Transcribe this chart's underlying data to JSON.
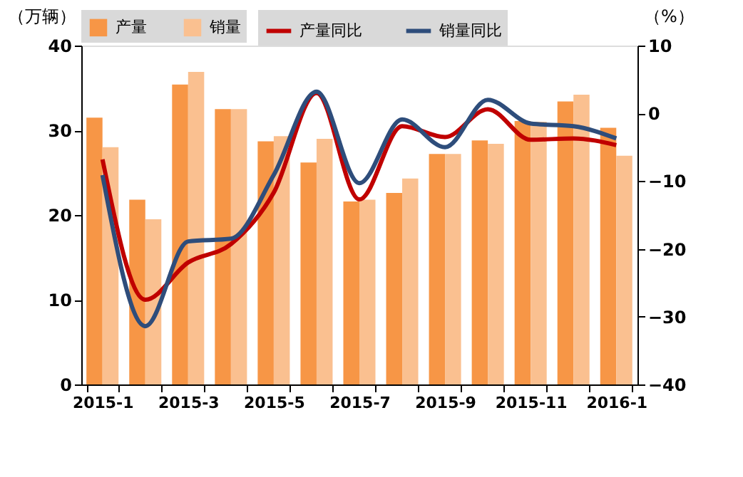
{
  "chart_data": {
    "type": "bar",
    "categories": [
      "2015-1",
      null,
      "2015-3",
      null,
      "2015-5",
      null,
      "2015-7",
      null,
      "2015-9",
      null,
      "2015-11",
      null,
      "2016-1"
    ],
    "ylabel": "（万辆）",
    "y2label": "（%）",
    "ylim": [
      0,
      40
    ],
    "yticks": [
      0,
      10,
      20,
      30,
      40
    ],
    "y2lim": [
      -40,
      10
    ],
    "y2ticks": [
      -40,
      -30,
      -20,
      -10,
      0,
      10
    ],
    "series": [
      {
        "name": "产量",
        "color": "#f79646",
        "values": [
          31.5,
          21.8,
          35.4,
          32.5,
          28.7,
          26.2,
          21.6,
          22.6,
          27.2,
          28.8,
          31.1,
          33.4,
          30.3
        ]
      },
      {
        "name": "销量",
        "color": "#fac090",
        "values": [
          28.0,
          19.5,
          36.9,
          32.5,
          29.3,
          29.0,
          21.8,
          24.3,
          27.2,
          28.4,
          31.0,
          34.2,
          27.0
        ]
      },
      {
        "name": "产量同比",
        "type": "line",
        "axis": "y2",
        "color": "#c00000",
        "values": [
          -6.8,
          -27.5,
          -22.0,
          -19.3,
          -11.7,
          3.0,
          -12.7,
          -1.9,
          -3.5,
          0.6,
          -3.9,
          -3.7,
          -4.7
        ]
      },
      {
        "name": "销量同比",
        "type": "line",
        "axis": "y2",
        "color": "#2e4d7b",
        "values": [
          -9.1,
          -31.4,
          -18.9,
          -18.5,
          -9.1,
          3.2,
          -10.3,
          -0.9,
          -5.0,
          2.0,
          -1.5,
          -1.9,
          -3.7
        ]
      }
    ],
    "legend": "top",
    "grid": false
  }
}
